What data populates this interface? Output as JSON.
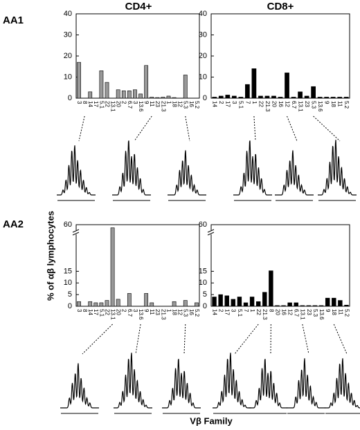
{
  "figure": {
    "columns": [
      "CD4+",
      "CD8+"
    ],
    "rows": [
      "AA1",
      "AA2"
    ],
    "y_label": "% of αβ lymphocytes",
    "x_label": "Vβ Family"
  },
  "chart_data": [
    {
      "type": "bar",
      "categories": [
        "3",
        "8",
        "14",
        "17",
        "5.1",
        "22",
        "13.1",
        "20",
        "2",
        "6.7",
        "3",
        "13.6",
        "9",
        "11",
        "23",
        "21.3",
        "1",
        "18",
        "12",
        "5.3",
        "16",
        "5.2"
      ],
      "values": [
        17,
        0,
        3,
        0,
        13,
        7.5,
        0,
        4,
        3.5,
        3.5,
        4,
        2,
        15.5,
        0.5,
        0.3,
        0.5,
        1,
        0.3,
        0,
        11,
        0,
        0
      ],
      "color": "#999999",
      "ylim": [
        0,
        40
      ],
      "yticks": [
        0,
        10,
        20,
        30,
        40
      ],
      "axis_break": false
    },
    {
      "type": "bar",
      "categories": [
        "14",
        "2",
        "17",
        "3",
        "5.1",
        "7",
        "1",
        "22",
        "21.3",
        "20",
        "16",
        "12",
        "6.7",
        "13.1",
        "23",
        "5.3",
        "13.6",
        "9",
        "18",
        "11",
        "5.2"
      ],
      "values": [
        0.5,
        1,
        1.5,
        1,
        0.5,
        6.5,
        14,
        1,
        1,
        1,
        0.5,
        12,
        0.5,
        3,
        1,
        5.5,
        0.5,
        0.5,
        0.5,
        0.5,
        0.5
      ],
      "color": "#000000",
      "ylim": [
        0,
        40
      ],
      "yticks": [
        0,
        10,
        20,
        30,
        40
      ],
      "axis_break": false
    },
    {
      "type": "bar",
      "categories": [
        "3",
        "8",
        "14",
        "17",
        "5.1",
        "22",
        "13.1",
        "20",
        "2",
        "6.7",
        "3",
        "13.6",
        "9",
        "11",
        "23",
        "21.3",
        "1",
        "18",
        "12",
        "5.3",
        "16",
        "5.2"
      ],
      "values": [
        2,
        0,
        2,
        1.5,
        1.5,
        2.5,
        57,
        3,
        0,
        5.5,
        0,
        0,
        5.5,
        1.5,
        0,
        0,
        0,
        2,
        0,
        2.5,
        0,
        1.5
      ],
      "color": "#999999",
      "ylim": [
        0,
        60
      ],
      "yticks": [
        0,
        5,
        10,
        15,
        60
      ],
      "axis_break": true
    },
    {
      "type": "bar",
      "categories": [
        "14",
        "2",
        "17",
        "3",
        "5.1",
        "7",
        "1",
        "22",
        "21.3",
        "8",
        "20",
        "16",
        "12",
        "6.7",
        "13.1",
        "23",
        "5.3",
        "13.6",
        "9",
        "18",
        "11",
        "5.2"
      ],
      "values": [
        4,
        5,
        4.5,
        3,
        4,
        1.5,
        4,
        2,
        6,
        15.5,
        0.3,
        0.3,
        1.5,
        1.5,
        0.3,
        0.3,
        0.3,
        0.3,
        3.5,
        3.5,
        2.5,
        0.5
      ],
      "color": "#000000",
      "ylim": [
        0,
        60
      ],
      "yticks": [
        0,
        5,
        10,
        15,
        60
      ],
      "axis_break": true
    }
  ]
}
